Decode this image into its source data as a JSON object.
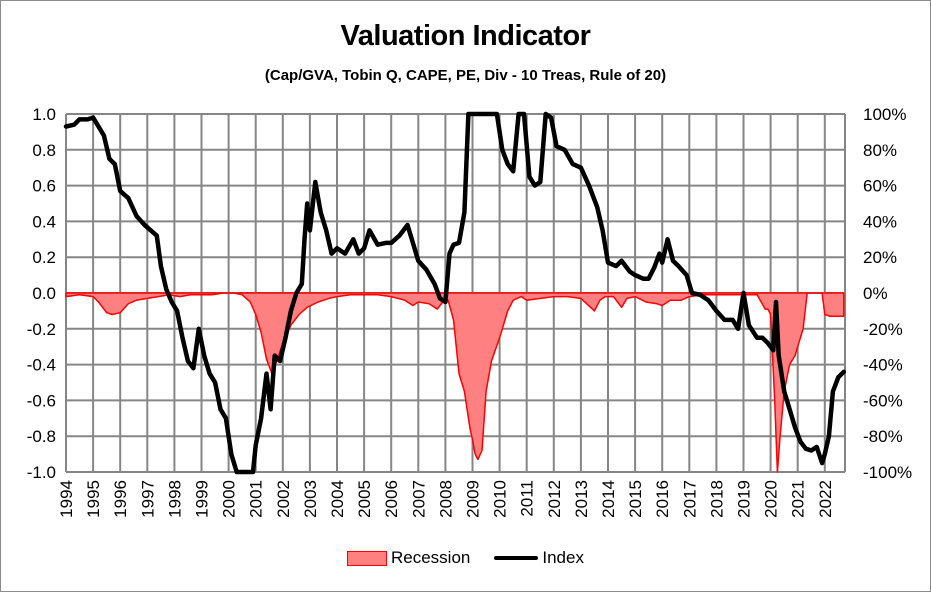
{
  "chart_data": {
    "type": "line",
    "title": "Valuation Indicator",
    "subtitle": "(Cap/GVA, Tobin Q, CAPE, PE, Div - 10 Treas, Rule of 20)",
    "xlabel": "",
    "ylabel": "",
    "xlim": [
      1994,
      2022.7
    ],
    "ylim": [
      -1.0,
      1.0
    ],
    "y2lim": [
      -1.0,
      1.0
    ],
    "grid": true,
    "legend_position": "bottom",
    "x_ticks": [
      "1994",
      "1995",
      "1996",
      "1997",
      "1998",
      "1999",
      "2000",
      "2001",
      "2002",
      "2003",
      "2004",
      "2005",
      "2006",
      "2007",
      "2008",
      "2009",
      "2010",
      "2011",
      "2012",
      "2013",
      "2014",
      "2015",
      "2016",
      "2017",
      "2018",
      "2019",
      "2020",
      "2021",
      "2022"
    ],
    "y_ticks": [
      "1.0",
      "0.8",
      "0.6",
      "0.4",
      "0.2",
      "0.0",
      "-0.2",
      "-0.4",
      "-0.6",
      "-0.8",
      "-1.0"
    ],
    "y2_ticks": [
      "100%",
      "80%",
      "60%",
      "40%",
      "20%",
      "0%",
      "-20%",
      "-40%",
      "-60%",
      "-80%",
      "-100%"
    ],
    "series": [
      {
        "name": "Recession",
        "style": "area",
        "fill": "#ff8080",
        "stroke": "#ff0000",
        "x": [
          1994.0,
          1994.5,
          1995.0,
          1995.2,
          1995.5,
          1995.7,
          1996.0,
          1996.3,
          1996.6,
          1997.0,
          1997.4,
          1997.8,
          1998.2,
          1998.6,
          1999.0,
          1999.4,
          1999.8,
          2000.2,
          2000.5,
          2000.8,
          2001.0,
          2001.2,
          2001.4,
          2001.6,
          2001.8,
          2002.0,
          2002.3,
          2002.6,
          2002.9,
          2003.3,
          2003.7,
          2004.0,
          2004.5,
          2005.0,
          2005.5,
          2006.0,
          2006.5,
          2006.8,
          2007.0,
          2007.4,
          2007.7,
          2007.9,
          2008.1,
          2008.3,
          2008.5,
          2008.7,
          2008.9,
          2009.0,
          2009.1,
          2009.2,
          2009.35,
          2009.5,
          2009.7,
          2010.0,
          2010.3,
          2010.5,
          2010.8,
          2011.0,
          2011.5,
          2012.0,
          2012.5,
          2013.0,
          2013.5,
          2013.7,
          2013.9,
          2014.2,
          2014.5,
          2014.7,
          2015.0,
          2015.4,
          2015.8,
          2016.0,
          2016.3,
          2016.7,
          2017.0,
          2017.5,
          2018.0,
          2018.5,
          2019.0,
          2019.5,
          2019.8,
          2019.9,
          2020.0,
          2020.15,
          2020.25,
          2020.35,
          2020.5,
          2020.7,
          2020.9,
          2021.0,
          2021.2,
          2021.35,
          2021.5,
          2021.7,
          2021.9,
          2022.0,
          2022.2,
          2022.5,
          2022.7
        ],
        "values": [
          -0.02,
          -0.01,
          -0.02,
          -0.05,
          -0.11,
          -0.12,
          -0.11,
          -0.06,
          -0.04,
          -0.03,
          -0.02,
          -0.01,
          -0.02,
          -0.01,
          -0.01,
          -0.01,
          0.0,
          0.0,
          -0.01,
          -0.05,
          -0.12,
          -0.22,
          -0.37,
          -0.45,
          -0.37,
          -0.28,
          -0.18,
          -0.12,
          -0.08,
          -0.05,
          -0.03,
          -0.02,
          -0.01,
          -0.01,
          -0.01,
          -0.02,
          -0.04,
          -0.07,
          -0.05,
          -0.06,
          -0.09,
          -0.05,
          -0.04,
          -0.15,
          -0.45,
          -0.55,
          -0.75,
          -0.82,
          -0.9,
          -0.93,
          -0.88,
          -0.55,
          -0.38,
          -0.25,
          -0.1,
          -0.04,
          -0.02,
          -0.04,
          -0.03,
          -0.02,
          -0.02,
          -0.03,
          -0.1,
          -0.04,
          -0.02,
          -0.02,
          -0.08,
          -0.03,
          -0.02,
          -0.05,
          -0.06,
          -0.07,
          -0.04,
          -0.04,
          -0.02,
          -0.01,
          -0.01,
          -0.01,
          -0.01,
          -0.01,
          -0.09,
          -0.09,
          -0.12,
          -0.6,
          -1.0,
          -0.8,
          -0.55,
          -0.4,
          -0.35,
          -0.3,
          -0.2,
          0.0,
          0.0,
          0.0,
          0.0,
          -0.12,
          -0.13,
          -0.13,
          -0.13
        ]
      },
      {
        "name": "Index",
        "style": "line",
        "stroke": "#000000",
        "x": [
          1994.0,
          1994.3,
          1994.5,
          1994.8,
          1995.0,
          1995.2,
          1995.4,
          1995.6,
          1995.8,
          1996.0,
          1996.3,
          1996.6,
          1996.9,
          1997.2,
          1997.35,
          1997.5,
          1997.7,
          1997.9,
          1998.1,
          1998.3,
          1998.5,
          1998.7,
          1998.9,
          1999.1,
          1999.3,
          1999.5,
          1999.7,
          1999.9,
          2000.1,
          2000.3,
          2000.6,
          2000.9,
          2001.0,
          2001.2,
          2001.4,
          2001.55,
          2001.7,
          2001.9,
          2002.1,
          2002.3,
          2002.5,
          2002.7,
          2002.8,
          2002.9,
          2003.0,
          2003.2,
          2003.4,
          2003.6,
          2003.8,
          2004.0,
          2004.3,
          2004.6,
          2004.8,
          2005.0,
          2005.2,
          2005.5,
          2005.8,
          2006.0,
          2006.3,
          2006.6,
          2006.8,
          2007.0,
          2007.3,
          2007.6,
          2007.8,
          2008.0,
          2008.15,
          2008.3,
          2008.5,
          2008.7,
          2008.85,
          2008.95,
          2009.3,
          2009.6,
          2009.9,
          2010.1,
          2010.3,
          2010.5,
          2010.7,
          2010.9,
          2011.1,
          2011.3,
          2011.5,
          2011.7,
          2011.9,
          2012.1,
          2012.4,
          2012.7,
          2013.0,
          2013.3,
          2013.6,
          2013.8,
          2014.0,
          2014.3,
          2014.5,
          2014.8,
          2015.0,
          2015.3,
          2015.5,
          2015.7,
          2015.9,
          2016.0,
          2016.2,
          2016.4,
          2016.6,
          2016.9,
          2017.1,
          2017.4,
          2017.7,
          2018.0,
          2018.3,
          2018.6,
          2018.8,
          2019.0,
          2019.2,
          2019.5,
          2019.7,
          2019.9,
          2020.1,
          2020.2,
          2020.3,
          2020.5,
          2020.7,
          2020.9,
          2021.1,
          2021.3,
          2021.5,
          2021.7,
          2021.9,
          2022.0,
          2022.15,
          2022.3,
          2022.5,
          2022.7
        ],
        "values": [
          0.93,
          0.94,
          0.97,
          0.97,
          0.98,
          0.93,
          0.88,
          0.75,
          0.72,
          0.57,
          0.53,
          0.43,
          0.38,
          0.34,
          0.32,
          0.15,
          0.02,
          -0.05,
          -0.1,
          -0.25,
          -0.38,
          -0.42,
          -0.2,
          -0.35,
          -0.45,
          -0.5,
          -0.65,
          -0.7,
          -0.9,
          -1.0,
          -1.0,
          -1.0,
          -0.85,
          -0.7,
          -0.45,
          -0.65,
          -0.35,
          -0.38,
          -0.25,
          -0.1,
          0.0,
          0.05,
          0.3,
          0.5,
          0.35,
          0.62,
          0.45,
          0.35,
          0.22,
          0.25,
          0.22,
          0.3,
          0.22,
          0.25,
          0.35,
          0.27,
          0.28,
          0.28,
          0.32,
          0.38,
          0.28,
          0.18,
          0.13,
          0.05,
          -0.03,
          -0.05,
          0.22,
          0.27,
          0.28,
          0.45,
          1.0,
          1.0,
          1.0,
          1.0,
          1.0,
          0.8,
          0.72,
          0.68,
          1.0,
          1.0,
          0.65,
          0.6,
          0.62,
          1.0,
          0.98,
          0.82,
          0.8,
          0.72,
          0.7,
          0.6,
          0.48,
          0.35,
          0.17,
          0.15,
          0.18,
          0.12,
          0.1,
          0.08,
          0.08,
          0.14,
          0.22,
          0.17,
          0.3,
          0.18,
          0.15,
          0.1,
          0.0,
          -0.01,
          -0.04,
          -0.1,
          -0.15,
          -0.15,
          -0.2,
          0.0,
          -0.18,
          -0.25,
          -0.25,
          -0.28,
          -0.32,
          -0.05,
          -0.35,
          -0.55,
          -0.65,
          -0.75,
          -0.83,
          -0.87,
          -0.88,
          -0.86,
          -0.95,
          -0.9,
          -0.8,
          -0.55,
          -0.47,
          -0.44
        ]
      }
    ]
  },
  "legend": {
    "items": [
      {
        "label": "Recession"
      },
      {
        "label": "Index"
      }
    ]
  }
}
